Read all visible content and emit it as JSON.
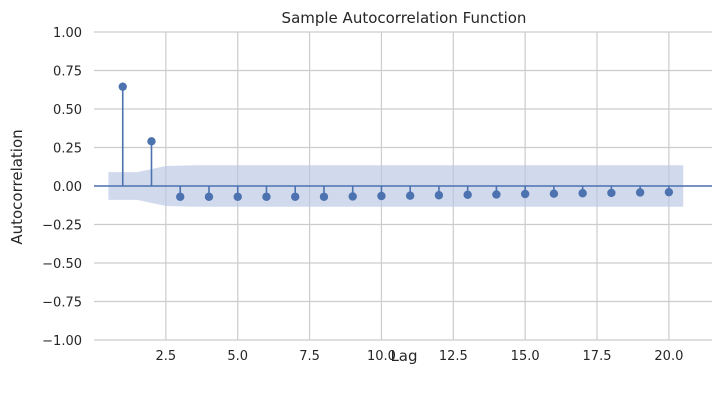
{
  "chart_data": {
    "type": "stem",
    "title": "Sample Autocorrelation Function",
    "xlabel": "Lag",
    "ylabel": "Autocorrelation",
    "xlim": [
      0.0,
      21.5
    ],
    "ylim": [
      -1.0,
      1.0
    ],
    "x_ticks": [
      2.5,
      5.0,
      7.5,
      10.0,
      12.5,
      15.0,
      17.5,
      20.0
    ],
    "x_tick_labels": [
      "2.5",
      "5.0",
      "7.5",
      "10.0",
      "12.5",
      "15.0",
      "17.5",
      "20.0"
    ],
    "y_ticks": [
      -1.0,
      -0.75,
      -0.5,
      -0.25,
      0.0,
      0.25,
      0.5,
      0.75,
      1.0
    ],
    "y_tick_labels": [
      "−1.00",
      "−0.75",
      "−0.50",
      "−0.25",
      "0.00",
      "0.25",
      "0.50",
      "0.75",
      "1.00"
    ],
    "grid": true,
    "series": [
      {
        "lags": [
          1,
          2,
          3,
          4,
          5,
          6,
          7,
          8,
          9,
          10,
          11,
          12,
          13,
          14,
          15,
          16,
          17,
          18,
          19,
          20
        ],
        "values": [
          0.645,
          0.29,
          -0.07,
          -0.07,
          -0.07,
          -0.07,
          -0.07,
          -0.07,
          -0.068,
          -0.065,
          -0.063,
          -0.06,
          -0.057,
          -0.055,
          -0.052,
          -0.05,
          -0.047,
          -0.045,
          -0.042,
          -0.04
        ]
      }
    ],
    "confidence_band": {
      "x": [
        0.5,
        1.5,
        2.5,
        3.5,
        4.5,
        5.5,
        6.5,
        7.5,
        8.5,
        9.5,
        10.5,
        11.5,
        12.5,
        13.5,
        14.5,
        15.5,
        16.5,
        17.5,
        18.5,
        19.5,
        20.5
      ],
      "upper": [
        0.09,
        0.09,
        0.13,
        0.135,
        0.135,
        0.135,
        0.135,
        0.135,
        0.135,
        0.135,
        0.135,
        0.135,
        0.135,
        0.135,
        0.135,
        0.135,
        0.135,
        0.135,
        0.135,
        0.135,
        0.135
      ],
      "lower": [
        -0.09,
        -0.09,
        -0.13,
        -0.135,
        -0.135,
        -0.135,
        -0.135,
        -0.135,
        -0.135,
        -0.135,
        -0.135,
        -0.135,
        -0.135,
        -0.135,
        -0.135,
        -0.135,
        -0.135,
        -0.135,
        -0.135,
        -0.135,
        -0.135
      ]
    },
    "colors": {
      "marker": "#4c72b0",
      "band": "#b8c6e3",
      "grid": "#cccccc",
      "zero_line": "#4c72b0",
      "text": "#262626"
    }
  }
}
